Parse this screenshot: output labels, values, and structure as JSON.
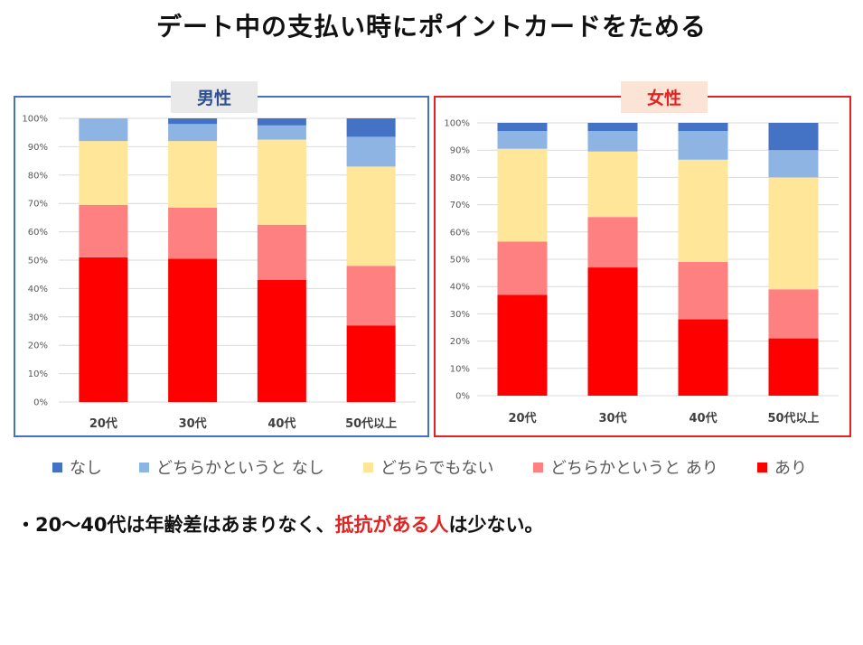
{
  "title": "デート中の支払い時にポイントカードをためる",
  "legend_order": [
    "なし",
    "どちらかというと なし",
    "どちらでもない",
    "どちらかというと あり",
    "あり"
  ],
  "colors": {
    "なし": "#4472c4",
    "どちらかというと なし": "#8eb4e3",
    "どちらでもない": "#ffe699",
    "どちらかというと あり": "#ff8080",
    "あり": "#ff0000"
  },
  "note": {
    "prefix": "・20〜40代は年齢差はあまりなく、",
    "accent": "抵抗がある人",
    "suffix": "は少ない。"
  },
  "chart_data": [
    {
      "type": "bar",
      "stacked": true,
      "title": "男性",
      "categories": [
        "20代",
        "30代",
        "40代",
        "50代以上"
      ],
      "y_ticks": [
        "0%",
        "10%",
        "20%",
        "30%",
        "40%",
        "50%",
        "60%",
        "70%",
        "80%",
        "90%",
        "100%"
      ],
      "ylim": [
        0,
        100
      ],
      "series": [
        {
          "name": "あり",
          "values": [
            51,
            50.5,
            43,
            27
          ]
        },
        {
          "name": "どちらかというと あり",
          "values": [
            18.5,
            18,
            19.5,
            21
          ]
        },
        {
          "name": "どちらでもない",
          "values": [
            22.5,
            23.5,
            30,
            35
          ]
        },
        {
          "name": "どちらかというと なし",
          "values": [
            8,
            6,
            5,
            10.5
          ]
        },
        {
          "name": "なし",
          "values": [
            0,
            2,
            2.5,
            6.5
          ]
        }
      ]
    },
    {
      "type": "bar",
      "stacked": true,
      "title": "女性",
      "categories": [
        "20代",
        "30代",
        "40代",
        "50代以上"
      ],
      "y_ticks": [
        "0%",
        "10%",
        "20%",
        "30%",
        "40%",
        "50%",
        "60%",
        "70%",
        "80%",
        "90%",
        "100%"
      ],
      "ylim": [
        0,
        100
      ],
      "series": [
        {
          "name": "あり",
          "values": [
            37,
            47,
            28,
            21
          ]
        },
        {
          "name": "どちらかというと あり",
          "values": [
            19.5,
            18.5,
            21,
            18
          ]
        },
        {
          "name": "どちらでもない",
          "values": [
            34,
            24,
            37.5,
            41
          ]
        },
        {
          "name": "どちらかというと なし",
          "values": [
            6.5,
            7.5,
            10.5,
            10
          ]
        },
        {
          "name": "なし",
          "values": [
            3,
            3,
            3,
            10
          ]
        }
      ]
    }
  ]
}
